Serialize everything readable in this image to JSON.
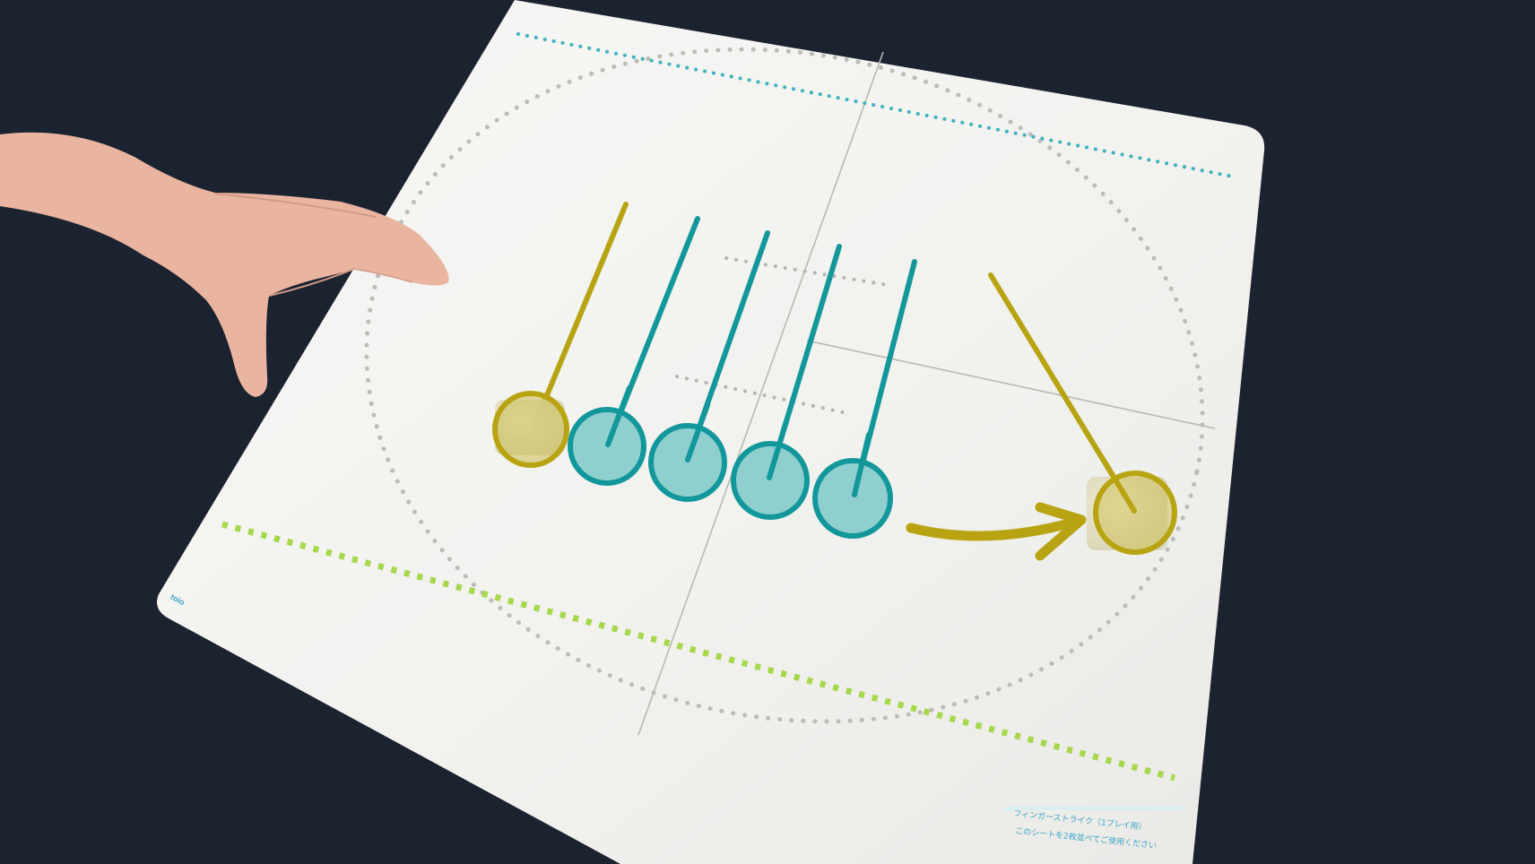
{
  "scene": {
    "description_colors": {
      "background": "#1b2230",
      "mat": "#f4f4f1",
      "accent_gold": "#b8a412",
      "accent_teal": "#12979b",
      "teal_fill": "#8fcfcd",
      "ring_dots": "#b9b9b6",
      "teal_dots": "#3fb2c1",
      "green_triangles": "#a5d84a",
      "skin": "#e6b29c"
    },
    "pendulum": {
      "ball_count": 6,
      "moving_balls": 2,
      "resting_balls": 4,
      "arrow": "right"
    },
    "mat_text": {
      "brand": "toio",
      "line1": "フィンガーストライク（1プレイ用）",
      "line2": "このシートを2枚並べてご使用ください"
    }
  }
}
